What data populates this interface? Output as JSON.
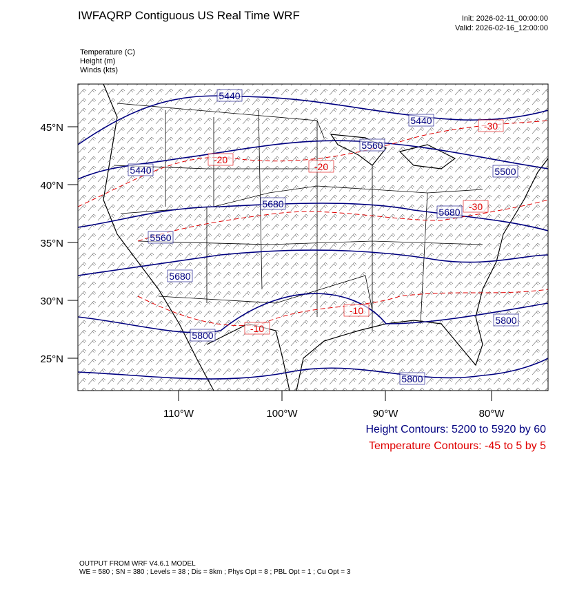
{
  "header": {
    "title": "IWFAQRP Contiguous US Real Time WRF",
    "init": "Init: 2026-02-11_00:00:00",
    "valid": "Valid: 2026-02-16_12:00:00"
  },
  "fields": [
    "Temperature   (C)",
    "Height   (m)",
    "Winds   (kts)"
  ],
  "map": {
    "lat_labels": [
      "45°N",
      "40°N",
      "35°N",
      "30°N",
      "25°N"
    ],
    "lon_labels": [
      "110°W",
      "100°W",
      "90°W",
      "80°W"
    ],
    "height_labels": [
      "5440",
      "5440",
      "5440",
      "5560",
      "5500",
      "5680",
      "5680",
      "5560",
      "5680",
      "5800",
      "5800",
      "5800"
    ],
    "temp_labels": [
      "-30",
      "-20",
      "-20",
      "-30",
      "-10",
      "-10"
    ]
  },
  "footer": {
    "height_contours": "Height Contours: 5200 to 5920 by 60",
    "temp_contours": "Temperature Contours: -45 to 5 by 5",
    "model": "OUTPUT FROM WRF V4.6.1 MODEL",
    "settings": "WE = 580 ; SN = 380 ; Levels = 38 ; Dis = 8km ; Phys Opt = 8 ; PBL Opt = 1 ; Cu Opt = 3"
  }
}
